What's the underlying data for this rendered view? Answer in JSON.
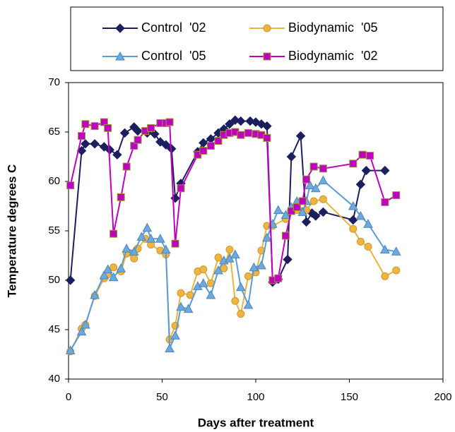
{
  "chart_data": {
    "type": "line",
    "xlabel": "Days after treatment",
    "ylabel": "Temperature  degrees C",
    "xlim": [
      0,
      200
    ],
    "xticks": [
      0,
      50,
      100,
      150,
      200
    ],
    "ylim": [
      40,
      70
    ],
    "yticks": [
      40,
      45,
      50,
      55,
      60,
      65,
      70
    ],
    "series": [
      {
        "name": "Control  '02",
        "color": "#1b1f5e",
        "marker": "diamond",
        "x": [
          1,
          7,
          9,
          14,
          19,
          22,
          26,
          30,
          35,
          37,
          42,
          46,
          49,
          52,
          55,
          57,
          60,
          69,
          72,
          76,
          80,
          83,
          86,
          89,
          92,
          97,
          100,
          103,
          106,
          109,
          112,
          117,
          119,
          124,
          127,
          130,
          132,
          136,
          152,
          156,
          159,
          169
        ],
        "values": [
          50,
          63.1,
          63.8,
          63.8,
          63.5,
          63.2,
          62.7,
          64.9,
          65.5,
          65.1,
          64.9,
          64.8,
          64,
          63.7,
          63.3,
          58.3,
          59.8,
          63,
          63.9,
          64.3,
          64.9,
          65.3,
          65.8,
          66.2,
          66.1,
          66.1,
          66,
          65.8,
          65.6,
          49.8,
          50.1,
          52.1,
          62.5,
          64.6,
          55.9,
          56.8,
          56.5,
          56.9,
          56.1,
          59.7,
          61.1,
          61.1
        ]
      },
      {
        "name": "Biodynamic  '05",
        "color": "#e8b440",
        "marker": "circle",
        "x": [
          1,
          7,
          9,
          14,
          19,
          21,
          24,
          28,
          31,
          35,
          37,
          41,
          44,
          49,
          52,
          54,
          57,
          60,
          65,
          69,
          72,
          76,
          80,
          83,
          86,
          89,
          92,
          96,
          100,
          103,
          106,
          109,
          116,
          119,
          122,
          125,
          127,
          131,
          136,
          152,
          156,
          160,
          169,
          175
        ],
        "values": [
          42.8,
          45.1,
          45.5,
          48.4,
          50.2,
          50.6,
          51.3,
          50.9,
          52.7,
          52.2,
          53.2,
          54.2,
          53.6,
          53,
          52.6,
          44,
          45.4,
          48.7,
          48.5,
          50.9,
          51.1,
          49.7,
          52.3,
          51.2,
          53.1,
          47.9,
          46.6,
          50.4,
          50.8,
          53,
          55.5,
          55.5,
          56.2,
          57,
          57.1,
          57,
          57.1,
          58,
          58.2,
          55.2,
          53.9,
          53.4,
          50.4,
          51
        ]
      },
      {
        "name": "Control  '05",
        "color": "#5b9bd5",
        "marker": "triangle",
        "x": [
          1,
          7,
          9,
          14,
          19,
          21,
          24,
          28,
          31,
          35,
          39,
          42,
          44,
          49,
          52,
          54,
          57,
          60,
          64,
          69,
          72,
          76,
          80,
          83,
          86,
          89,
          92,
          96,
          99,
          103,
          106,
          109,
          112,
          116,
          119,
          122,
          125,
          127,
          129,
          132,
          136,
          152,
          156,
          160,
          169,
          175
        ],
        "values": [
          42.9,
          44.8,
          45.5,
          48.5,
          50.5,
          51.1,
          50.3,
          51.2,
          53.2,
          52.9,
          54.4,
          55.3,
          54.2,
          54.2,
          53.1,
          43.1,
          44.4,
          47.3,
          47.1,
          49.4,
          49.7,
          48.5,
          51,
          52,
          52.2,
          52.6,
          49.3,
          47.5,
          51.3,
          51.5,
          54.3,
          55.7,
          57.1,
          56.6,
          57.4,
          58,
          56.9,
          58,
          59.6,
          59.3,
          60.1,
          57.5,
          56.5,
          55.7,
          53.1,
          52.9
        ]
      },
      {
        "name": "Biodynamic  '02",
        "color": "#c000c0",
        "marker": "square",
        "x": [
          1,
          7,
          9,
          14,
          19,
          21,
          24,
          28,
          31,
          35,
          37,
          41,
          44,
          49,
          52,
          54,
          57,
          60,
          69,
          72,
          76,
          80,
          83,
          86,
          89,
          92,
          96,
          100,
          103,
          106,
          109,
          112,
          116,
          119,
          122,
          125,
          127,
          131,
          136,
          152,
          157,
          161,
          169,
          175
        ],
        "values": [
          59.6,
          64.6,
          65.8,
          65.6,
          66,
          65.4,
          54.7,
          58.4,
          61.5,
          63.6,
          64.2,
          65.1,
          65.4,
          65.9,
          65.9,
          66,
          53.7,
          59.3,
          62.7,
          63.1,
          63.6,
          64.1,
          64.7,
          64.9,
          65,
          64.7,
          64.9,
          64.8,
          64.7,
          64.4,
          50,
          50.2,
          54.5,
          57,
          57.4,
          58,
          60.2,
          61.5,
          61.3,
          61.8,
          62.7,
          62.6,
          57.9,
          58.6
        ]
      }
    ]
  }
}
